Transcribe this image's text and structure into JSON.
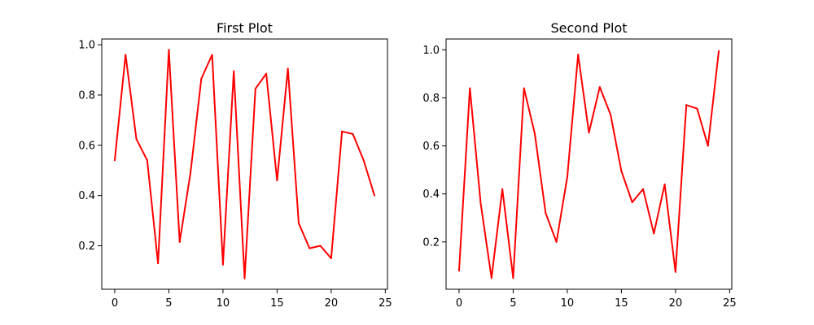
{
  "chart_data": [
    {
      "type": "line",
      "title": "First Plot",
      "xlabel": "",
      "ylabel": "",
      "xlim": [
        -1.2,
        25.2
      ],
      "ylim": [
        0.027,
        1.023
      ],
      "xticks": [
        0,
        5,
        10,
        15,
        20,
        25
      ],
      "yticks": [
        0.2,
        0.4,
        0.6,
        0.8,
        1.0
      ],
      "xtick_labels": [
        "0",
        "5",
        "10",
        "15",
        "20",
        "25"
      ],
      "ytick_labels": [
        "0.2",
        "0.4",
        "0.6",
        "0.8",
        "1.0"
      ],
      "grid": false,
      "color": "#ff0000",
      "x": [
        0,
        1,
        2,
        3,
        4,
        5,
        6,
        7,
        8,
        9,
        10,
        11,
        12,
        13,
        14,
        15,
        16,
        17,
        18,
        19,
        20,
        21,
        22,
        23,
        24
      ],
      "y": [
        0.54,
        0.96,
        0.625,
        0.54,
        0.13,
        0.98,
        0.215,
        0.49,
        0.865,
        0.96,
        0.125,
        0.895,
        0.07,
        0.825,
        0.885,
        0.46,
        0.905,
        0.29,
        0.19,
        0.2,
        0.15,
        0.655,
        0.645,
        0.54,
        0.4
      ]
    },
    {
      "type": "line",
      "title": "Second Plot",
      "xlabel": "",
      "ylabel": "",
      "xlim": [
        -1.2,
        25.2
      ],
      "ylim": [
        0.003,
        1.045
      ],
      "xticks": [
        0,
        5,
        10,
        15,
        20,
        25
      ],
      "yticks": [
        0.2,
        0.4,
        0.6,
        0.8,
        1.0
      ],
      "xtick_labels": [
        "0",
        "5",
        "10",
        "15",
        "20",
        "25"
      ],
      "ytick_labels": [
        "0.2",
        "0.4",
        "0.6",
        "0.8",
        "1.0"
      ],
      "grid": false,
      "color": "#ff0000",
      "x": [
        0,
        1,
        2,
        3,
        4,
        5,
        6,
        7,
        8,
        9,
        10,
        11,
        12,
        13,
        14,
        15,
        16,
        17,
        18,
        19,
        20,
        21,
        22,
        23,
        24
      ],
      "y": [
        0.08,
        0.84,
        0.36,
        0.05,
        0.42,
        0.05,
        0.84,
        0.65,
        0.32,
        0.2,
        0.47,
        0.98,
        0.655,
        0.845,
        0.73,
        0.495,
        0.365,
        0.42,
        0.235,
        0.44,
        0.075,
        0.77,
        0.755,
        0.6,
        0.995
      ]
    }
  ]
}
